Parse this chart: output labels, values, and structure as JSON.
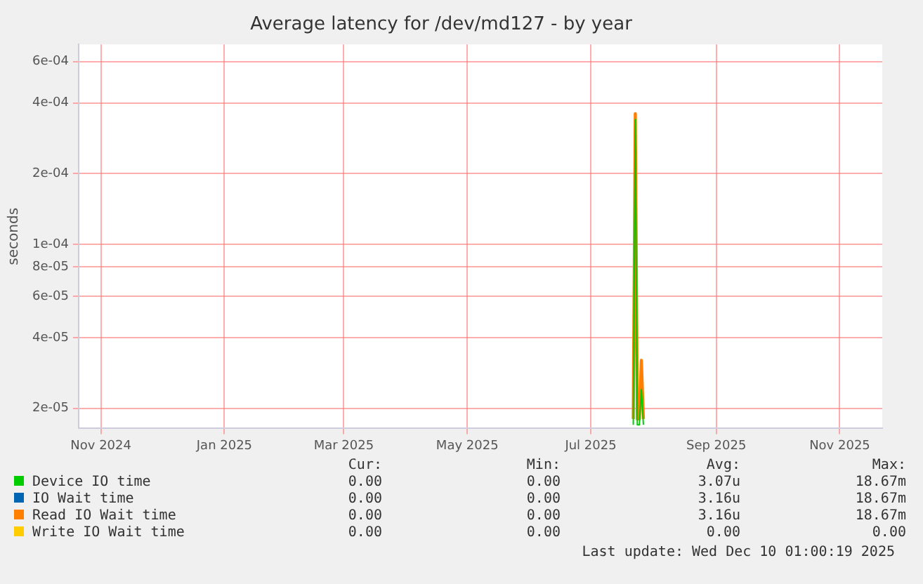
{
  "chart_data": {
    "type": "line",
    "title": "Average latency for /dev/md127 - by year",
    "ylabel": "seconds",
    "x": [
      "2025-07-22",
      "2025-07-23",
      "2025-07-24",
      "2025-07-25",
      "2025-07-26",
      "2025-07-27"
    ],
    "series": [
      {
        "name": "Device IO time",
        "color": "#00cc00",
        "values": [
          1.7e-05,
          0.00034,
          1.7e-05,
          1.7e-05,
          2.4e-05,
          1.7e-05
        ]
      },
      {
        "name": "IO Wait time",
        "color": "#0066b3",
        "values": [
          null,
          null,
          null,
          null,
          null,
          null
        ]
      },
      {
        "name": "Read IO Wait time",
        "color": "#ff8000",
        "values": [
          1.8e-05,
          0.00036,
          1.8e-05,
          1.8e-05,
          3.2e-05,
          1.8e-05
        ]
      },
      {
        "name": "Write IO Wait time",
        "color": "#ffcc00",
        "values": [
          null,
          null,
          null,
          null,
          null,
          null
        ]
      }
    ],
    "log": "y",
    "grid": true,
    "legend": "bottom",
    "marker": "none",
    "line_style": "solid",
    "xlim": [
      "2024-10-21",
      "2025-11-22"
    ],
    "xticks": [
      {
        "value": "2024-11-01",
        "label": "Nov 2024"
      },
      {
        "value": "2025-01-01",
        "label": "Jan 2025"
      },
      {
        "value": "2025-03-01",
        "label": "Mar 2025"
      },
      {
        "value": "2025-05-01",
        "label": "May 2025"
      },
      {
        "value": "2025-07-01",
        "label": "Jul 2025"
      },
      {
        "value": "2025-09-01",
        "label": "Sep 2025"
      },
      {
        "value": "2025-11-01",
        "label": "Nov 2025"
      }
    ],
    "ylim": [
      1.64e-05,
      0.00071
    ],
    "yticks": [
      {
        "value": 2e-05,
        "label": "2e-05"
      },
      {
        "value": 4e-05,
        "label": "4e-05"
      },
      {
        "value": 6e-05,
        "label": "6e-05"
      },
      {
        "value": 8e-05,
        "label": "8e-05"
      },
      {
        "value": 0.0001,
        "label": "1e-04"
      },
      {
        "value": 0.0002,
        "label": "2e-04"
      },
      {
        "value": 0.0004,
        "label": "4e-04"
      },
      {
        "value": 0.0006,
        "label": "6e-04"
      }
    ],
    "annotations": [
      "Cur:",
      "Min:",
      "Avg:",
      "Max:",
      "0.00",
      "0.00",
      "3.07u",
      "18.67m",
      "0.00",
      "0.00",
      "3.16u",
      "18.67m",
      "0.00",
      "0.00",
      "3.16u",
      "18.67m",
      "0.00",
      "0.00",
      "0.00",
      "0.00",
      "Last update: Wed Dec 10 01:00:19 2025"
    ]
  }
}
